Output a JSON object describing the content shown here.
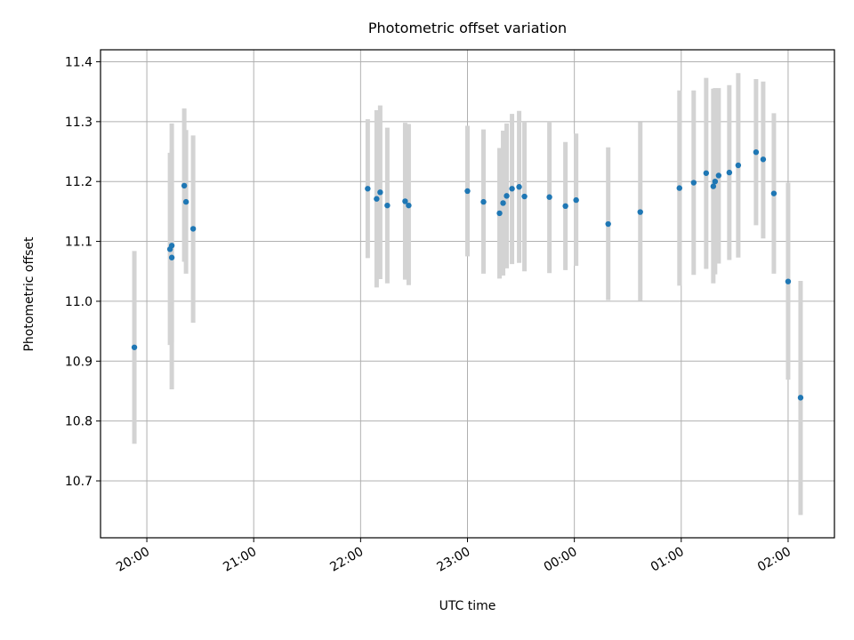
{
  "chart_data": {
    "type": "scatter",
    "title": "Photometric offset variation",
    "xlabel": "UTC time",
    "ylabel": "Photometric offset",
    "x_axis": {
      "kind": "time",
      "range": [
        "19:34",
        "02:26"
      ],
      "ticks": [
        "20:00",
        "21:00",
        "22:00",
        "23:00",
        "00:00",
        "01:00",
        "02:00"
      ],
      "tick_label_rotation_deg": 30
    },
    "y_axis": {
      "range": [
        10.605,
        11.42
      ],
      "ticks": [
        "10.7",
        "10.8",
        "10.9",
        "11.0",
        "11.1",
        "11.2",
        "11.3",
        "11.4"
      ]
    },
    "grid": true,
    "marker_color": "#1f77b4",
    "errorbar_color": "#d3d3d3",
    "points": [
      {
        "t": "19:53",
        "y": 10.923,
        "lo": 10.762,
        "hi": 11.084
      },
      {
        "t": "20:13",
        "y": 11.087,
        "lo": 10.927,
        "hi": 11.248
      },
      {
        "t": "20:14",
        "y": 11.093,
        "lo": 10.932,
        "hi": 11.254
      },
      {
        "t": "20:14",
        "y": 11.073,
        "lo": 10.853,
        "hi": 11.297
      },
      {
        "t": "20:21",
        "y": 11.193,
        "lo": 11.066,
        "hi": 11.322
      },
      {
        "t": "20:22",
        "y": 11.166,
        "lo": 11.046,
        "hi": 11.286
      },
      {
        "t": "20:26",
        "y": 11.121,
        "lo": 10.964,
        "hi": 11.277
      },
      {
        "t": "22:04",
        "y": 11.188,
        "lo": 11.072,
        "hi": 11.304
      },
      {
        "t": "22:09",
        "y": 11.171,
        "lo": 11.023,
        "hi": 11.319
      },
      {
        "t": "22:11",
        "y": 11.182,
        "lo": 11.037,
        "hi": 11.327
      },
      {
        "t": "22:15",
        "y": 11.16,
        "lo": 11.03,
        "hi": 11.29
      },
      {
        "t": "22:25",
        "y": 11.167,
        "lo": 11.036,
        "hi": 11.298
      },
      {
        "t": "22:27",
        "y": 11.16,
        "lo": 11.027,
        "hi": 11.296
      },
      {
        "t": "23:00",
        "y": 11.184,
        "lo": 11.075,
        "hi": 11.293
      },
      {
        "t": "23:09",
        "y": 11.166,
        "lo": 11.046,
        "hi": 11.287
      },
      {
        "t": "23:18",
        "y": 11.147,
        "lo": 11.038,
        "hi": 11.256
      },
      {
        "t": "23:20",
        "y": 11.164,
        "lo": 11.043,
        "hi": 11.285
      },
      {
        "t": "23:22",
        "y": 11.176,
        "lo": 11.055,
        "hi": 11.297
      },
      {
        "t": "23:25",
        "y": 11.188,
        "lo": 11.062,
        "hi": 11.313
      },
      {
        "t": "23:29",
        "y": 11.191,
        "lo": 11.064,
        "hi": 11.318
      },
      {
        "t": "23:32",
        "y": 11.175,
        "lo": 11.05,
        "hi": 11.3
      },
      {
        "t": "23:46",
        "y": 11.174,
        "lo": 11.047,
        "hi": 11.3
      },
      {
        "t": "23:55",
        "y": 11.159,
        "lo": 11.052,
        "hi": 11.266
      },
      {
        "t": "00:01",
        "y": 11.169,
        "lo": 11.059,
        "hi": 11.28
      },
      {
        "t": "00:19",
        "y": 11.129,
        "lo": 11.002,
        "hi": 11.257
      },
      {
        "t": "00:37",
        "y": 11.149,
        "lo": 11.001,
        "hi": 11.299
      },
      {
        "t": "00:59",
        "y": 11.189,
        "lo": 11.026,
        "hi": 11.352
      },
      {
        "t": "01:07",
        "y": 11.198,
        "lo": 11.044,
        "hi": 11.352
      },
      {
        "t": "01:14",
        "y": 11.214,
        "lo": 11.054,
        "hi": 11.373
      },
      {
        "t": "01:18",
        "y": 11.192,
        "lo": 11.03,
        "hi": 11.355
      },
      {
        "t": "01:19",
        "y": 11.2,
        "lo": 11.045,
        "hi": 11.356
      },
      {
        "t": "01:21",
        "y": 11.21,
        "lo": 11.063,
        "hi": 11.356
      },
      {
        "t": "01:27",
        "y": 11.215,
        "lo": 11.069,
        "hi": 11.361
      },
      {
        "t": "01:32",
        "y": 11.227,
        "lo": 11.073,
        "hi": 11.381
      },
      {
        "t": "01:42",
        "y": 11.249,
        "lo": 11.127,
        "hi": 11.371
      },
      {
        "t": "01:46",
        "y": 11.237,
        "lo": 11.105,
        "hi": 11.367
      },
      {
        "t": "01:52",
        "y": 11.18,
        "lo": 11.046,
        "hi": 11.314
      },
      {
        "t": "02:00",
        "y": 11.033,
        "lo": 10.869,
        "hi": 11.198
      },
      {
        "t": "02:07",
        "y": 10.839,
        "lo": 10.643,
        "hi": 11.034
      }
    ]
  }
}
